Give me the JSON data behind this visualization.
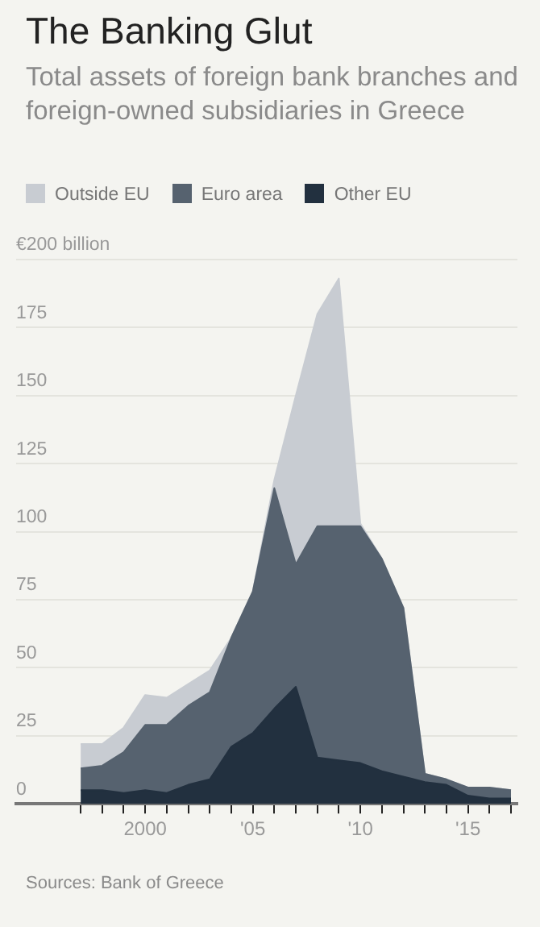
{
  "chart_data": {
    "type": "area",
    "title": "The Banking Glut",
    "subtitle": "Total assets of foreign bank branches and foreign-owned subsidiaries in Greece",
    "stacked": true,
    "legend": "top left",
    "grid": "y",
    "x": [
      1997,
      1998,
      1999,
      2000,
      2001,
      2002,
      2003,
      2004,
      2005,
      2006,
      2007,
      2008,
      2009,
      2010,
      2011,
      2012,
      2013,
      2014,
      2015,
      2016,
      2017
    ],
    "series": [
      {
        "name": "Other EU",
        "color": "#22303f",
        "values": [
          5,
          5,
          4,
          5,
          4,
          7,
          9,
          21,
          26,
          35,
          43,
          17,
          16,
          15,
          12,
          10,
          8,
          7,
          3,
          2,
          2
        ]
      },
      {
        "name": "Euro area",
        "color": "#56626f",
        "values": [
          8,
          9,
          15,
          24,
          25,
          29,
          32,
          40,
          52,
          81,
          45,
          85,
          86,
          87,
          78,
          62,
          3,
          2,
          3,
          4,
          3
        ]
      },
      {
        "name": "Outside EU",
        "color": "#c8ccd2",
        "values": [
          9,
          8,
          9,
          11,
          10,
          8,
          8,
          0,
          0,
          3,
          62,
          78,
          91,
          1,
          0,
          0,
          0,
          0,
          0,
          0,
          0
        ]
      }
    ],
    "xlim": [
      1994,
      2017.3
    ],
    "xticks": [
      {
        "value": 1997,
        "label": null
      },
      {
        "value": 1998,
        "label": null
      },
      {
        "value": 1999,
        "label": null
      },
      {
        "value": 2000,
        "label": "2000"
      },
      {
        "value": 2001,
        "label": null
      },
      {
        "value": 2002,
        "label": null
      },
      {
        "value": 2003,
        "label": null
      },
      {
        "value": 2004,
        "label": null
      },
      {
        "value": 2005,
        "label": "'05"
      },
      {
        "value": 2006,
        "label": null
      },
      {
        "value": 2007,
        "label": null
      },
      {
        "value": 2008,
        "label": null
      },
      {
        "value": 2009,
        "label": null
      },
      {
        "value": 2010,
        "label": "'10"
      },
      {
        "value": 2011,
        "label": null
      },
      {
        "value": 2012,
        "label": null
      },
      {
        "value": 2013,
        "label": null
      },
      {
        "value": 2014,
        "label": null
      },
      {
        "value": 2015,
        "label": "'15"
      },
      {
        "value": 2016,
        "label": null
      },
      {
        "value": 2017,
        "label": null
      }
    ],
    "ylim": [
      0,
      200
    ],
    "yticks": [
      0,
      25,
      50,
      75,
      100,
      125,
      150,
      175,
      {
        "value": 200,
        "label": "€200 billion"
      }
    ],
    "annotations": [
      "Sources: Bank of Greece"
    ]
  }
}
